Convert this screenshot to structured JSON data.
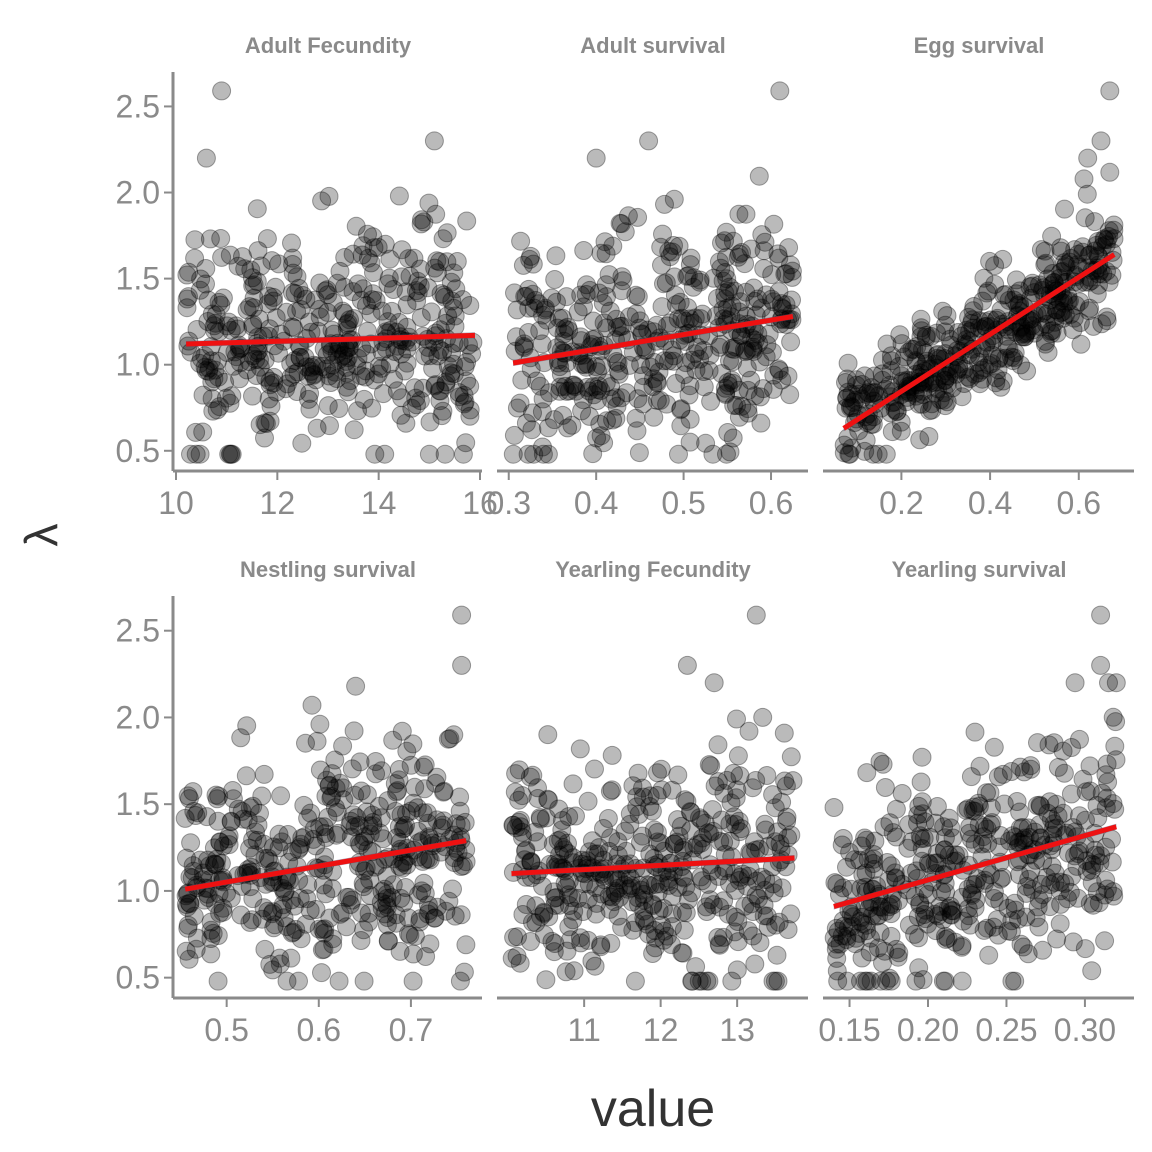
{
  "chart_data": {
    "type": "scatter",
    "xlabel": "value",
    "ylabel": "λ",
    "colors": {
      "points": "#000000",
      "fit_line": "#ee1111",
      "band": "#555577",
      "axis": "#8a8a8a",
      "text": "#8a8a8a"
    },
    "panels": [
      {
        "title": "Adult Fecundity",
        "xlim": [
          10.0,
          16.0
        ],
        "ylim": [
          0.4,
          2.7
        ],
        "x_ticks": [
          "10",
          "12",
          "14",
          "16"
        ],
        "x_tick_values": [
          10,
          12,
          14,
          16
        ],
        "y_ticks": [
          "0.5",
          "1.0",
          "1.5",
          "2.0",
          "2.5"
        ],
        "y_tick_values": [
          0.5,
          1.0,
          1.5,
          2.0,
          2.5
        ],
        "x_range": [
          10.2,
          15.9
        ],
        "n_points": 420,
        "fit": {
          "x": [
            10.2,
            15.9
          ],
          "y": [
            1.12,
            1.17
          ]
        },
        "y_spread": 0.3,
        "extremes": [
          {
            "x": 10.9,
            "y": 2.59
          },
          {
            "x": 15.1,
            "y": 2.3
          },
          {
            "x": 10.6,
            "y": 2.2
          }
        ]
      },
      {
        "title": "Adult survival",
        "xlim": [
          0.29,
          0.64
        ],
        "ylim": [
          0.4,
          2.7
        ],
        "x_ticks": [
          "0.3",
          "0.4",
          "0.5",
          "0.6"
        ],
        "x_tick_values": [
          0.3,
          0.4,
          0.5,
          0.6
        ],
        "y_ticks": [],
        "y_tick_values": [],
        "x_range": [
          0.305,
          0.625
        ],
        "n_points": 420,
        "fit": {
          "x": [
            0.305,
            0.625
          ],
          "y": [
            1.01,
            1.28
          ]
        },
        "y_spread": 0.3,
        "extremes": [
          {
            "x": 0.61,
            "y": 2.59
          },
          {
            "x": 0.46,
            "y": 2.3
          },
          {
            "x": 0.4,
            "y": 2.2
          }
        ]
      },
      {
        "title": "Egg survival",
        "xlim": [
          0.03,
          0.72
        ],
        "ylim": [
          0.4,
          2.7
        ],
        "x_ticks": [
          "0.2",
          "0.4",
          "0.6"
        ],
        "x_tick_values": [
          0.2,
          0.4,
          0.6
        ],
        "y_ticks": [],
        "y_tick_values": [],
        "x_range": [
          0.07,
          0.68
        ],
        "n_points": 420,
        "fit": {
          "x": [
            0.07,
            0.68
          ],
          "y": [
            0.63,
            1.64
          ]
        },
        "y_spread": 0.16,
        "extremes": [
          {
            "x": 0.67,
            "y": 2.59
          },
          {
            "x": 0.65,
            "y": 2.3
          },
          {
            "x": 0.62,
            "y": 2.2
          }
        ]
      },
      {
        "title": "Nestling survival",
        "xlim": [
          0.445,
          0.775
        ],
        "ylim": [
          0.4,
          2.7
        ],
        "x_ticks": [
          "0.5",
          "0.6",
          "0.7"
        ],
        "x_tick_values": [
          0.5,
          0.6,
          0.7
        ],
        "y_ticks": [
          "0.5",
          "1.0",
          "1.5",
          "2.0",
          "2.5"
        ],
        "y_tick_values": [
          0.5,
          1.0,
          1.5,
          2.0,
          2.5
        ],
        "x_range": [
          0.455,
          0.76
        ],
        "n_points": 420,
        "fit": {
          "x": [
            0.455,
            0.76
          ],
          "y": [
            1.01,
            1.29
          ]
        },
        "y_spread": 0.3,
        "extremes": [
          {
            "x": 0.755,
            "y": 2.59
          },
          {
            "x": 0.755,
            "y": 2.3
          },
          {
            "x": 0.64,
            "y": 2.18
          }
        ]
      },
      {
        "title": "Yearling Fecundity",
        "xlim": [
          9.9,
          13.9
        ],
        "ylim": [
          0.4,
          2.7
        ],
        "x_ticks": [
          "11",
          "12",
          "13"
        ],
        "x_tick_values": [
          11,
          12,
          13
        ],
        "y_ticks": [],
        "y_tick_values": [],
        "x_range": [
          10.05,
          13.75
        ],
        "n_points": 420,
        "fit": {
          "x": [
            10.05,
            13.75
          ],
          "y": [
            1.1,
            1.19
          ]
        },
        "y_spread": 0.3,
        "extremes": [
          {
            "x": 13.25,
            "y": 2.59
          },
          {
            "x": 12.35,
            "y": 2.3
          },
          {
            "x": 12.7,
            "y": 2.2
          }
        ]
      },
      {
        "title": "Yearling survival",
        "xlim": [
          0.135,
          0.33
        ],
        "ylim": [
          0.4,
          2.7
        ],
        "x_ticks": [
          "0.15",
          "0.20",
          "0.25",
          "0.30"
        ],
        "x_tick_values": [
          0.15,
          0.2,
          0.25,
          0.3
        ],
        "y_ticks": [],
        "y_tick_values": [],
        "x_range": [
          0.14,
          0.32
        ],
        "n_points": 420,
        "fit": {
          "x": [
            0.14,
            0.32
          ],
          "y": [
            0.91,
            1.37
          ]
        },
        "y_spread": 0.3,
        "extremes": [
          {
            "x": 0.31,
            "y": 2.59
          },
          {
            "x": 0.31,
            "y": 2.3
          },
          {
            "x": 0.32,
            "y": 2.2
          }
        ]
      }
    ]
  }
}
